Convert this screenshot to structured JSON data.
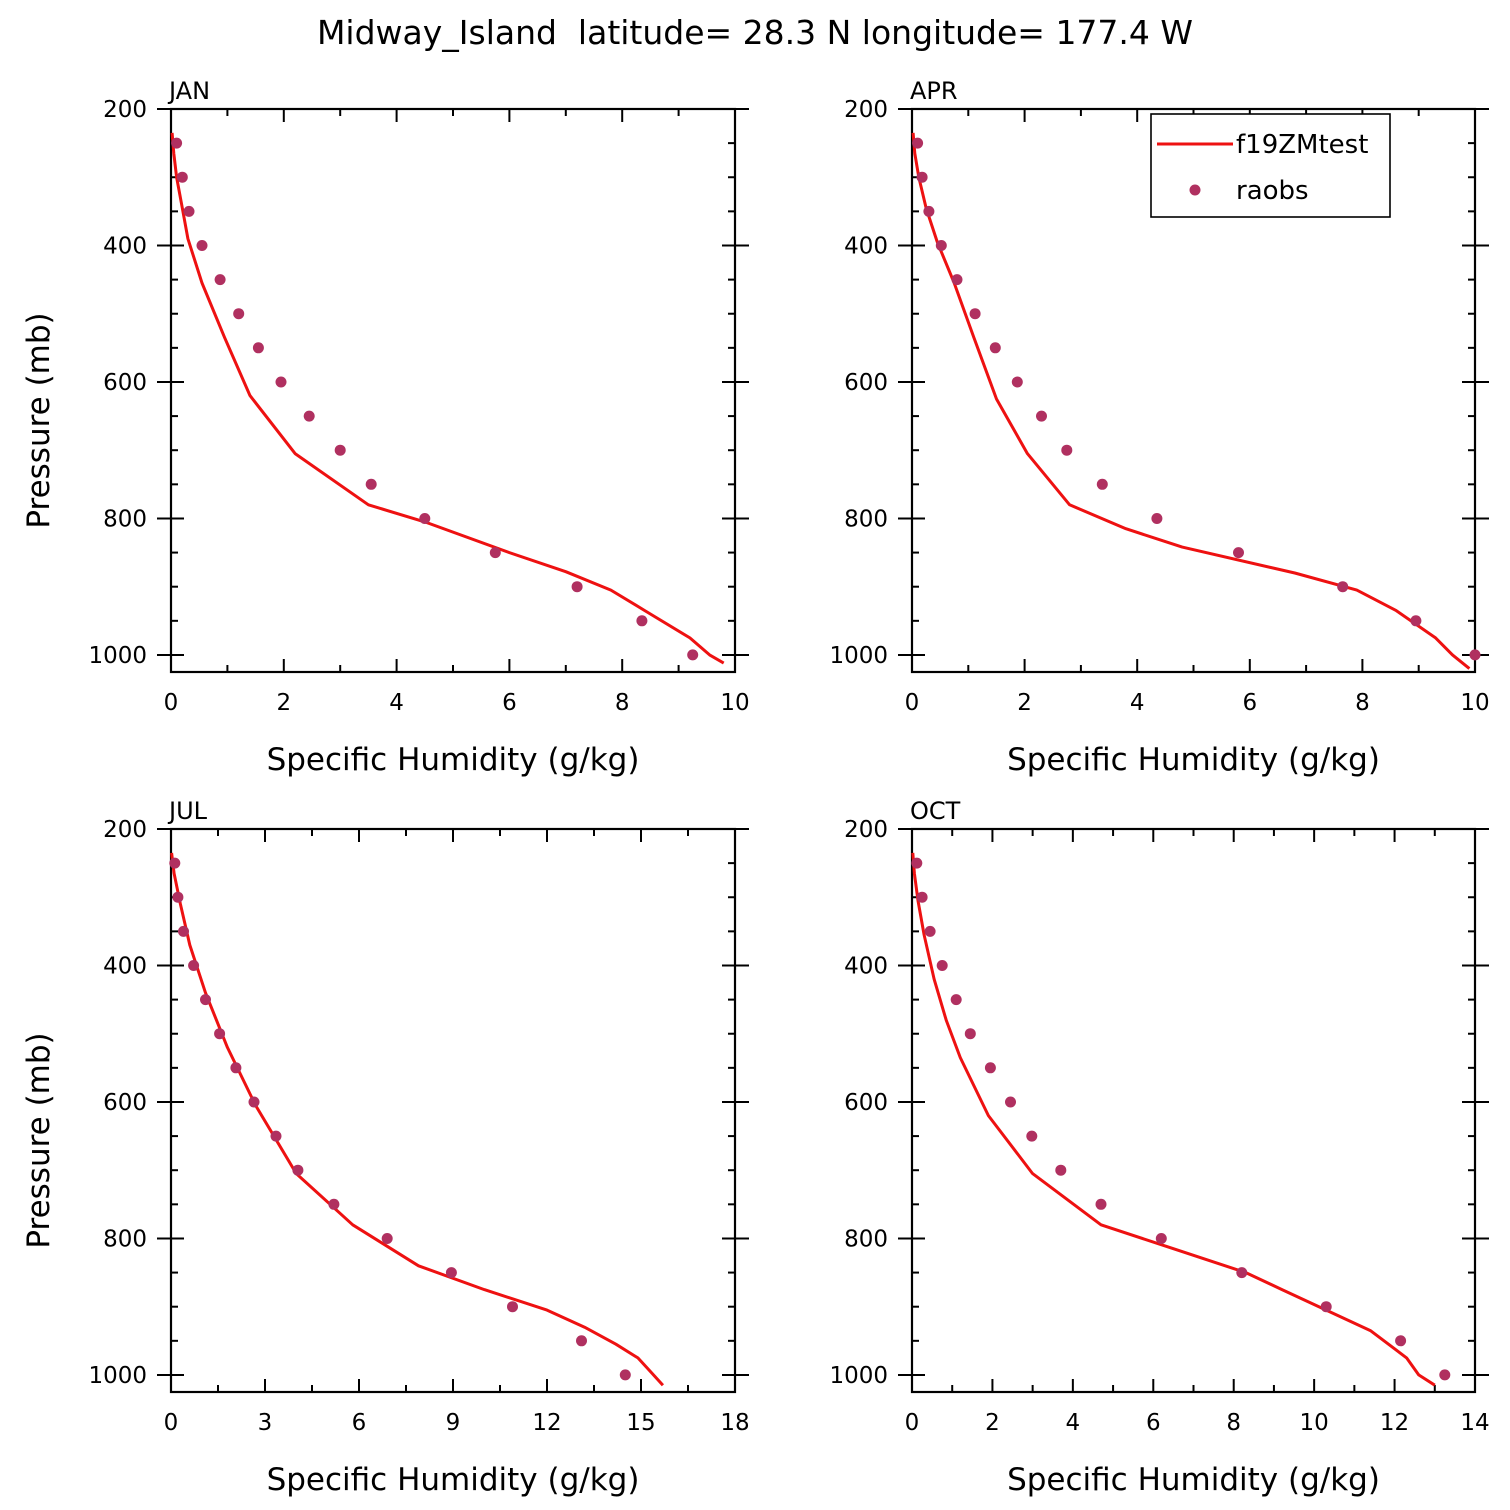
{
  "figure": {
    "title": "Midway_Island  latitude= 28.3 N longitude= 177.4 W"
  },
  "legend": {
    "model_label": "f19ZMtest",
    "obs_label": "raobs"
  },
  "colors": {
    "model": "#ee1111",
    "obs": "#b03060",
    "axis": "#000000"
  },
  "chart_data": [
    {
      "type": "line",
      "panel": "JAN",
      "xlabel": "Specific Humidity (g/kg)",
      "ylabel": "Pressure (mb)",
      "xlim": [
        0,
        10
      ],
      "ylim": [
        200,
        1025
      ],
      "y_inverted": true,
      "xticks": [
        0,
        2,
        4,
        6,
        8,
        10
      ],
      "yticks": [
        200,
        400,
        600,
        800,
        1000
      ],
      "series": [
        {
          "name": "f19ZMtest",
          "style": "line",
          "points": [
            [
              0.02,
              235
            ],
            [
              0.05,
              265
            ],
            [
              0.1,
              300
            ],
            [
              0.2,
              345
            ],
            [
              0.3,
              390
            ],
            [
              0.55,
              455
            ],
            [
              0.95,
              535
            ],
            [
              1.4,
              620
            ],
            [
              2.2,
              705
            ],
            [
              3.5,
              780
            ],
            [
              4.5,
              805
            ],
            [
              6.0,
              850
            ],
            [
              7.0,
              878
            ],
            [
              7.8,
              905
            ],
            [
              8.4,
              935
            ],
            [
              9.2,
              975
            ],
            [
              9.55,
              1000
            ],
            [
              9.8,
              1012
            ]
          ]
        },
        {
          "name": "raobs",
          "style": "scatter",
          "points": [
            [
              0.1,
              250
            ],
            [
              0.2,
              300
            ],
            [
              0.32,
              350
            ],
            [
              0.55,
              400
            ],
            [
              0.87,
              450
            ],
            [
              1.2,
              500
            ],
            [
              1.55,
              550
            ],
            [
              1.95,
              600
            ],
            [
              2.45,
              650
            ],
            [
              3.0,
              700
            ],
            [
              3.55,
              750
            ],
            [
              4.5,
              800
            ],
            [
              5.75,
              850
            ],
            [
              7.2,
              900
            ],
            [
              8.35,
              950
            ],
            [
              9.25,
              1000
            ]
          ]
        }
      ]
    },
    {
      "type": "line",
      "panel": "APR",
      "xlabel": "Specific Humidity (g/kg)",
      "ylabel": "",
      "xlim": [
        0,
        10
      ],
      "ylim": [
        200,
        1025
      ],
      "y_inverted": true,
      "xticks": [
        0,
        2,
        4,
        6,
        8,
        10
      ],
      "yticks": [
        200,
        400,
        600,
        800,
        1000
      ],
      "series": [
        {
          "name": "f19ZMtest",
          "style": "line",
          "points": [
            [
              0.02,
              235
            ],
            [
              0.05,
              265
            ],
            [
              0.12,
              300
            ],
            [
              0.25,
              345
            ],
            [
              0.45,
              395
            ],
            [
              0.75,
              455
            ],
            [
              1.1,
              535
            ],
            [
              1.5,
              625
            ],
            [
              2.05,
              705
            ],
            [
              2.8,
              780
            ],
            [
              3.8,
              815
            ],
            [
              4.8,
              842
            ],
            [
              6.8,
              880
            ],
            [
              7.9,
              905
            ],
            [
              8.6,
              935
            ],
            [
              9.3,
              975
            ],
            [
              9.6,
              1000
            ],
            [
              9.9,
              1020
            ]
          ]
        },
        {
          "name": "raobs",
          "style": "scatter",
          "points": [
            [
              0.1,
              250
            ],
            [
              0.18,
              300
            ],
            [
              0.3,
              350
            ],
            [
              0.52,
              400
            ],
            [
              0.8,
              450
            ],
            [
              1.12,
              500
            ],
            [
              1.48,
              550
            ],
            [
              1.87,
              600
            ],
            [
              2.3,
              650
            ],
            [
              2.75,
              700
            ],
            [
              3.38,
              750
            ],
            [
              4.35,
              800
            ],
            [
              5.8,
              850
            ],
            [
              7.65,
              900
            ],
            [
              8.95,
              950
            ],
            [
              10.0,
              1000
            ]
          ]
        }
      ]
    },
    {
      "type": "line",
      "panel": "JUL",
      "xlabel": "Specific Humidity (g/kg)",
      "ylabel": "Pressure (mb)",
      "xlim": [
        0,
        18
      ],
      "ylim": [
        200,
        1025
      ],
      "y_inverted": true,
      "xticks": [
        0,
        3,
        6,
        9,
        12,
        15,
        18
      ],
      "yticks": [
        200,
        400,
        600,
        800,
        1000
      ],
      "series": [
        {
          "name": "f19ZMtest",
          "style": "line",
          "points": [
            [
              0.02,
              235
            ],
            [
              0.1,
              265
            ],
            [
              0.3,
              310
            ],
            [
              0.6,
              370
            ],
            [
              1.1,
              440
            ],
            [
              1.8,
              520
            ],
            [
              2.7,
              605
            ],
            [
              4.0,
              705
            ],
            [
              5.8,
              780
            ],
            [
              7.9,
              840
            ],
            [
              10.0,
              875
            ],
            [
              12.0,
              905
            ],
            [
              13.2,
              930
            ],
            [
              14.2,
              955
            ],
            [
              14.9,
              975
            ],
            [
              15.3,
              995
            ],
            [
              15.7,
              1015
            ]
          ]
        },
        {
          "name": "raobs",
          "style": "scatter",
          "points": [
            [
              0.12,
              250
            ],
            [
              0.22,
              300
            ],
            [
              0.4,
              350
            ],
            [
              0.72,
              400
            ],
            [
              1.1,
              450
            ],
            [
              1.55,
              500
            ],
            [
              2.07,
              550
            ],
            [
              2.65,
              600
            ],
            [
              3.35,
              650
            ],
            [
              4.05,
              700
            ],
            [
              5.2,
              750
            ],
            [
              6.9,
              800
            ],
            [
              8.95,
              850
            ],
            [
              10.9,
              900
            ],
            [
              13.1,
              950
            ],
            [
              14.5,
              1000
            ]
          ]
        }
      ]
    },
    {
      "type": "line",
      "panel": "OCT",
      "xlabel": "Specific Humidity (g/kg)",
      "ylabel": "",
      "xlim": [
        0,
        14
      ],
      "ylim": [
        200,
        1025
      ],
      "y_inverted": true,
      "xticks": [
        0,
        2,
        4,
        6,
        8,
        10,
        12,
        14
      ],
      "yticks": [
        200,
        400,
        600,
        800,
        1000
      ],
      "series": [
        {
          "name": "f19ZMtest",
          "style": "line",
          "points": [
            [
              0.02,
              235
            ],
            [
              0.06,
              265
            ],
            [
              0.15,
              305
            ],
            [
              0.3,
              355
            ],
            [
              0.55,
              420
            ],
            [
              0.85,
              480
            ],
            [
              1.2,
              535
            ],
            [
              1.9,
              620
            ],
            [
              3.0,
              705
            ],
            [
              4.7,
              780
            ],
            [
              6.5,
              815
            ],
            [
              8.3,
              850
            ],
            [
              9.2,
              875
            ],
            [
              10.3,
              905
            ],
            [
              11.4,
              935
            ],
            [
              12.3,
              975
            ],
            [
              12.6,
              1000
            ],
            [
              13.0,
              1015
            ]
          ]
        },
        {
          "name": "raobs",
          "style": "scatter",
          "points": [
            [
              0.12,
              250
            ],
            [
              0.25,
              300
            ],
            [
              0.45,
              350
            ],
            [
              0.75,
              400
            ],
            [
              1.1,
              450
            ],
            [
              1.45,
              500
            ],
            [
              1.95,
              550
            ],
            [
              2.45,
              600
            ],
            [
              2.98,
              650
            ],
            [
              3.7,
              700
            ],
            [
              4.7,
              750
            ],
            [
              6.2,
              800
            ],
            [
              8.2,
              850
            ],
            [
              10.3,
              900
            ],
            [
              12.15,
              950
            ],
            [
              13.25,
              1000
            ]
          ]
        }
      ]
    }
  ]
}
